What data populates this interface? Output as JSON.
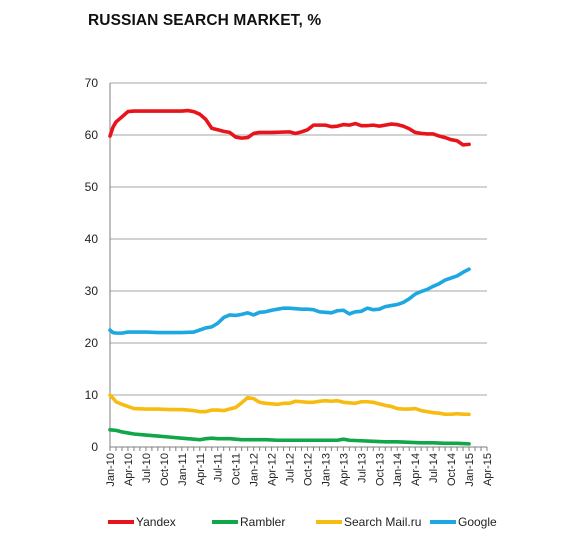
{
  "chart_data": {
    "type": "line",
    "title": "RUSSIAN SEARCH MARKET, %",
    "xlabel": "",
    "ylabel": "",
    "ylim": [
      0,
      70
    ],
    "yticks": [
      0,
      10,
      20,
      30,
      40,
      50,
      60,
      70
    ],
    "grid": true,
    "legend_position": "bottom",
    "x_tick_labels": [
      "Jan-10",
      "Apr-10",
      "Jul-10",
      "Oct-10",
      "Jan-11",
      "Apr-11",
      "Jul-11",
      "Oct-11",
      "Jan-12",
      "Apr-12",
      "Jul-12",
      "Oct-12",
      "Jan-13",
      "Apr-13",
      "Jul-13",
      "Oct-13",
      "Jan-14",
      "Apr-14",
      "Jul-14",
      "Oct-14",
      "Jan-15",
      "Apr-15"
    ],
    "series": [
      {
        "name": "Yandex",
        "color": "#e8141b",
        "points": [
          [
            0,
            59.8
          ],
          [
            0.5,
            61.5
          ],
          [
            1,
            62.5
          ],
          [
            2,
            63.5
          ],
          [
            3,
            64.5
          ],
          [
            4,
            64.6
          ],
          [
            6,
            64.6
          ],
          [
            8,
            64.6
          ],
          [
            9,
            64.6
          ],
          [
            10,
            64.6
          ],
          [
            11,
            64.6
          ],
          [
            12,
            64.6
          ],
          [
            13,
            64.7
          ],
          [
            14,
            64.5
          ],
          [
            15,
            64
          ],
          [
            16,
            63
          ],
          [
            17,
            61.3
          ],
          [
            18,
            61
          ],
          [
            19,
            60.7
          ],
          [
            20,
            60.5
          ],
          [
            21,
            59.6
          ],
          [
            22,
            59.4
          ],
          [
            23,
            59.5
          ],
          [
            24,
            60.3
          ],
          [
            25,
            60.5
          ],
          [
            27,
            60.5
          ],
          [
            30,
            60.6
          ],
          [
            31,
            60.3
          ],
          [
            32,
            60.6
          ],
          [
            33,
            61
          ],
          [
            34,
            61.9
          ],
          [
            35,
            61.9
          ],
          [
            36,
            61.9
          ],
          [
            37,
            61.6
          ],
          [
            38,
            61.7
          ],
          [
            39,
            62
          ],
          [
            40,
            61.9
          ],
          [
            41,
            62.2
          ],
          [
            42,
            61.8
          ],
          [
            43,
            61.8
          ],
          [
            44,
            61.9
          ],
          [
            45,
            61.7
          ],
          [
            46,
            61.9
          ],
          [
            47,
            62.1
          ],
          [
            48,
            62
          ],
          [
            49,
            61.7
          ],
          [
            50,
            61.2
          ],
          [
            51,
            60.5
          ],
          [
            52,
            60.3
          ],
          [
            53,
            60.2
          ],
          [
            54,
            60.2
          ],
          [
            55,
            59.8
          ],
          [
            56,
            59.5
          ],
          [
            57,
            59.1
          ],
          [
            58,
            58.9
          ],
          [
            59,
            58.1
          ],
          [
            60,
            58.2
          ]
        ]
      },
      {
        "name": "Rambler",
        "color": "#12a64a",
        "points": [
          [
            0,
            3.3
          ],
          [
            1,
            3.2
          ],
          [
            2,
            2.9
          ],
          [
            3,
            2.7
          ],
          [
            4,
            2.5
          ],
          [
            6,
            2.3
          ],
          [
            8,
            2.1
          ],
          [
            10,
            1.9
          ],
          [
            12,
            1.7
          ],
          [
            14,
            1.5
          ],
          [
            15,
            1.4
          ],
          [
            16,
            1.6
          ],
          [
            17,
            1.7
          ],
          [
            18,
            1.6
          ],
          [
            20,
            1.6
          ],
          [
            21,
            1.5
          ],
          [
            22,
            1.4
          ],
          [
            24,
            1.4
          ],
          [
            26,
            1.4
          ],
          [
            28,
            1.3
          ],
          [
            30,
            1.3
          ],
          [
            32,
            1.3
          ],
          [
            34,
            1.3
          ],
          [
            36,
            1.3
          ],
          [
            38,
            1.3
          ],
          [
            39,
            1.5
          ],
          [
            40,
            1.3
          ],
          [
            42,
            1.2
          ],
          [
            44,
            1.1
          ],
          [
            46,
            1
          ],
          [
            48,
            1
          ],
          [
            50,
            0.9
          ],
          [
            52,
            0.8
          ],
          [
            54,
            0.8
          ],
          [
            56,
            0.7
          ],
          [
            58,
            0.7
          ],
          [
            60,
            0.6
          ]
        ]
      },
      {
        "name": "Search Mail.ru",
        "color": "#f7bc11",
        "points": [
          [
            0,
            10
          ],
          [
            0.5,
            9.4
          ],
          [
            1,
            8.7
          ],
          [
            2,
            8.2
          ],
          [
            3,
            7.8
          ],
          [
            4,
            7.4
          ],
          [
            6,
            7.3
          ],
          [
            8,
            7.3
          ],
          [
            10,
            7.2
          ],
          [
            12,
            7.2
          ],
          [
            14,
            7
          ],
          [
            15,
            6.8
          ],
          [
            16,
            6.8
          ],
          [
            17,
            7.1
          ],
          [
            18,
            7.1
          ],
          [
            19,
            7
          ],
          [
            20,
            7.3
          ],
          [
            21,
            7.6
          ],
          [
            22,
            8.5
          ],
          [
            23,
            9.5
          ],
          [
            24,
            9.3
          ],
          [
            25,
            8.6
          ],
          [
            26,
            8.4
          ],
          [
            27,
            8.3
          ],
          [
            28,
            8.2
          ],
          [
            29,
            8.4
          ],
          [
            30,
            8.4
          ],
          [
            31,
            8.8
          ],
          [
            32,
            8.7
          ],
          [
            33,
            8.6
          ],
          [
            34,
            8.6
          ],
          [
            35,
            8.8
          ],
          [
            36,
            8.9
          ],
          [
            37,
            8.8
          ],
          [
            38,
            8.9
          ],
          [
            39,
            8.6
          ],
          [
            40,
            8.5
          ],
          [
            41,
            8.4
          ],
          [
            42,
            8.7
          ],
          [
            43,
            8.7
          ],
          [
            44,
            8.6
          ],
          [
            45,
            8.3
          ],
          [
            46,
            8
          ],
          [
            47,
            7.8
          ],
          [
            48,
            7.4
          ],
          [
            49,
            7.3
          ],
          [
            50,
            7.3
          ],
          [
            51,
            7.4
          ],
          [
            52,
            7
          ],
          [
            53,
            6.8
          ],
          [
            54,
            6.6
          ],
          [
            55,
            6.5
          ],
          [
            56,
            6.3
          ],
          [
            57,
            6.3
          ],
          [
            58,
            6.4
          ],
          [
            59,
            6.3
          ],
          [
            60,
            6.3
          ]
        ]
      },
      {
        "name": "Google",
        "color": "#1ea8e2",
        "points": [
          [
            0,
            22.5
          ],
          [
            0.5,
            22
          ],
          [
            1,
            21.9
          ],
          [
            2,
            21.9
          ],
          [
            3,
            22.1
          ],
          [
            4,
            22.1
          ],
          [
            6,
            22.1
          ],
          [
            8,
            22
          ],
          [
            10,
            22
          ],
          [
            12,
            22
          ],
          [
            14,
            22.1
          ],
          [
            15,
            22.5
          ],
          [
            16,
            22.9
          ],
          [
            17,
            23.1
          ],
          [
            18,
            23.8
          ],
          [
            19,
            24.9
          ],
          [
            20,
            25.4
          ],
          [
            21,
            25.3
          ],
          [
            22,
            25.5
          ],
          [
            23,
            25.8
          ],
          [
            24,
            25.4
          ],
          [
            25,
            25.9
          ],
          [
            26,
            26
          ],
          [
            27,
            26.3
          ],
          [
            28,
            26.5
          ],
          [
            29,
            26.7
          ],
          [
            30,
            26.7
          ],
          [
            31,
            26.6
          ],
          [
            32,
            26.5
          ],
          [
            33,
            26.5
          ],
          [
            34,
            26.4
          ],
          [
            35,
            26
          ],
          [
            36,
            25.9
          ],
          [
            37,
            25.8
          ],
          [
            38,
            26.2
          ],
          [
            39,
            26.3
          ],
          [
            40,
            25.6
          ],
          [
            41,
            26
          ],
          [
            42,
            26.1
          ],
          [
            43,
            26.7
          ],
          [
            44,
            26.4
          ],
          [
            45,
            26.5
          ],
          [
            46,
            27
          ],
          [
            47,
            27.2
          ],
          [
            48,
            27.4
          ],
          [
            49,
            27.8
          ],
          [
            50,
            28.5
          ],
          [
            51,
            29.4
          ],
          [
            52,
            29.9
          ],
          [
            53,
            30.3
          ],
          [
            54,
            30.9
          ],
          [
            55,
            31.4
          ],
          [
            56,
            32.1
          ],
          [
            57,
            32.5
          ],
          [
            58,
            32.9
          ],
          [
            59,
            33.6
          ],
          [
            60,
            34.2
          ]
        ]
      }
    ]
  }
}
